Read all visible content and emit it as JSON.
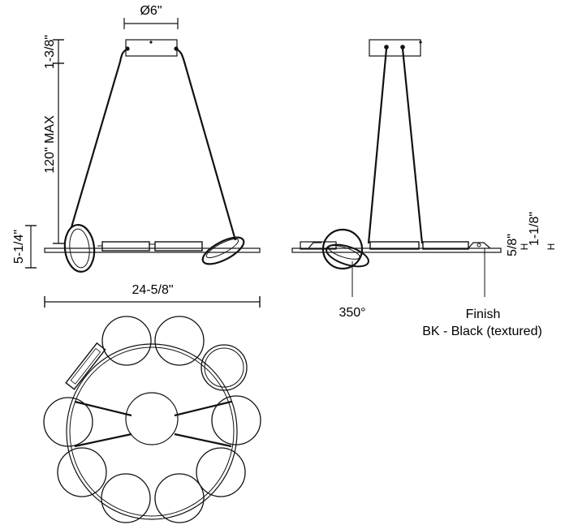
{
  "dimensions": {
    "canopy_diameter": "Ø6\"",
    "canopy_height": "1-3/8\"",
    "cable_max_length": "120\" MAX",
    "fixture_height": "5-1/4\"",
    "overall_length": "24-5/8\"",
    "side_dim_small": "5/8\"",
    "side_dim_large": "1-1/8\"",
    "side_dim_unit_small": "H",
    "side_dim_unit_large": "H"
  },
  "callouts": {
    "rotation": "350°",
    "finish_title": "Finish",
    "finish_value": "BK - Black (textured)"
  }
}
